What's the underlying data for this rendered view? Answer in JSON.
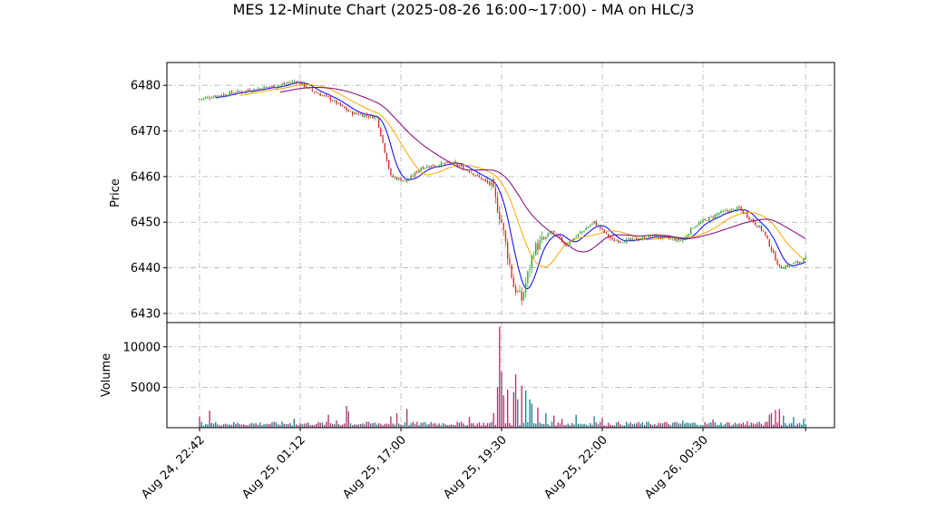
{
  "chart_data": {
    "type": "candlestick",
    "title": "MES 12-Minute Chart (2025-08-26 16:00~17:00) - MA on HLC/3",
    "price_panel": {
      "ylabel": "Price",
      "ylim": [
        6428,
        6485
      ],
      "yticks": [
        6430,
        6440,
        6450,
        6460,
        6470,
        6480
      ],
      "grid": true,
      "colors": {
        "up": "#2ca02c",
        "down": "#d62728"
      }
    },
    "volume_panel": {
      "ylabel": "Volume",
      "ylim": [
        0,
        13000
      ],
      "yticks": [
        5000,
        10000
      ],
      "yticklabels": [
        "5000",
        "10000"
      ],
      "grid": true,
      "colors": {
        "up": "#1a7f8a",
        "down": "#b0306a"
      }
    },
    "x_ticks": [
      "Aug 24, 22:42",
      "Aug 25, 01:12",
      "Aug 25, 17:00",
      "Aug 25, 19:30",
      "Aug 25, 22:00",
      "Aug 26, 00:30"
    ],
    "x_tick_index": [
      0,
      50,
      100,
      150,
      200,
      250
    ],
    "n_bars": 302,
    "anchors": [
      [
        0,
        6477
      ],
      [
        12,
        6478
      ],
      [
        25,
        6479
      ],
      [
        40,
        6480
      ],
      [
        48,
        6481
      ],
      [
        55,
        6479
      ],
      [
        65,
        6477
      ],
      [
        75,
        6474
      ],
      [
        88,
        6473
      ],
      [
        95,
        6460
      ],
      [
        103,
        6459
      ],
      [
        110,
        6462
      ],
      [
        125,
        6463
      ],
      [
        135,
        6461
      ],
      [
        145,
        6458
      ],
      [
        150,
        6450
      ],
      [
        156,
        6436
      ],
      [
        160,
        6433
      ],
      [
        166,
        6444
      ],
      [
        175,
        6448
      ],
      [
        182,
        6445
      ],
      [
        190,
        6448
      ],
      [
        196,
        6450
      ],
      [
        205,
        6446
      ],
      [
        215,
        6446
      ],
      [
        225,
        6447
      ],
      [
        240,
        6446
      ],
      [
        245,
        6449
      ],
      [
        258,
        6452
      ],
      [
        268,
        6453
      ],
      [
        280,
        6448
      ],
      [
        288,
        6440
      ],
      [
        296,
        6441
      ],
      [
        301,
        6442
      ]
    ],
    "volume_spikes": [
      [
        0,
        1400
      ],
      [
        5,
        2100
      ],
      [
        47,
        1100
      ],
      [
        64,
        1600
      ],
      [
        68,
        900
      ],
      [
        73,
        2700
      ],
      [
        74,
        2000
      ],
      [
        95,
        1400
      ],
      [
        98,
        1800
      ],
      [
        103,
        2300
      ],
      [
        115,
        700
      ],
      [
        134,
        1300
      ],
      [
        146,
        1800
      ],
      [
        148,
        5000
      ],
      [
        149,
        12500
      ],
      [
        150,
        6900
      ],
      [
        151,
        4000
      ],
      [
        153,
        4700
      ],
      [
        156,
        4400
      ],
      [
        157,
        6600
      ],
      [
        158,
        3500
      ],
      [
        160,
        5200
      ],
      [
        162,
        4600
      ],
      [
        164,
        3500
      ],
      [
        165,
        3000
      ],
      [
        168,
        2500
      ],
      [
        172,
        1800
      ],
      [
        176,
        1500
      ],
      [
        180,
        1100
      ],
      [
        187,
        1600
      ],
      [
        196,
        1400
      ],
      [
        200,
        1200
      ],
      [
        240,
        900
      ],
      [
        255,
        1000
      ],
      [
        272,
        800
      ],
      [
        283,
        1600
      ],
      [
        284,
        1800
      ],
      [
        286,
        2200
      ],
      [
        288,
        2300
      ],
      [
        290,
        1500
      ],
      [
        295,
        1300
      ],
      [
        300,
        1100
      ]
    ],
    "moving_averages": [
      {
        "color": "#0000ff",
        "window": 8
      },
      {
        "color": "#ffa500",
        "window": 20
      },
      {
        "color": "#800080",
        "window": 40
      }
    ]
  }
}
